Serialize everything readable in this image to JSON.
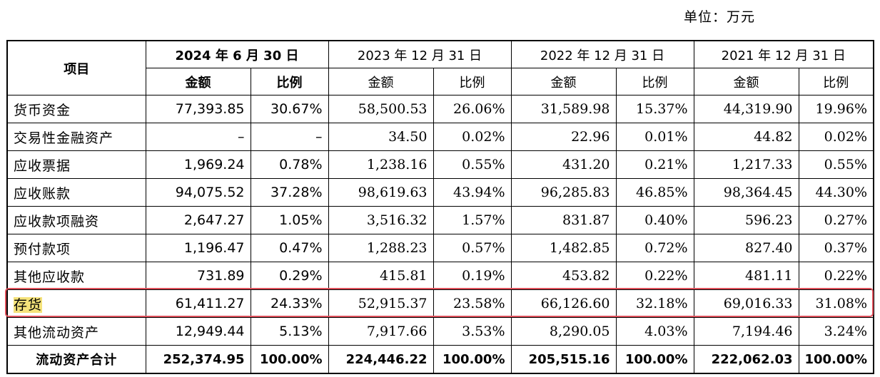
{
  "unit_label": "单位：万元",
  "header": {
    "item": "项目",
    "periods": [
      "2024 年 6 月 30 日",
      "2023 年 12 月 31 日",
      "2022 年 12 月 31 日",
      "2021 年 12 月 31 日"
    ],
    "amount": "金额",
    "ratio": "比例"
  },
  "rows": [
    {
      "label": "货币资金",
      "v": [
        "77,393.85",
        "30.67%",
        "58,500.53",
        "26.06%",
        "31,589.98",
        "15.37%",
        "44,319.90",
        "19.96%"
      ]
    },
    {
      "label": "交易性金融资产",
      "v": [
        "–",
        "–",
        "34.50",
        "0.02%",
        "22.96",
        "0.01%",
        "44.82",
        "0.02%"
      ]
    },
    {
      "label": "应收票据",
      "v": [
        "1,969.24",
        "0.78%",
        "1,238.16",
        "0.55%",
        "431.20",
        "0.21%",
        "1,217.33",
        "0.55%"
      ]
    },
    {
      "label": "应收账款",
      "v": [
        "94,075.52",
        "37.28%",
        "98,619.63",
        "43.94%",
        "96,285.83",
        "46.85%",
        "98,364.45",
        "44.30%"
      ]
    },
    {
      "label": "应收款项融资",
      "v": [
        "2,647.27",
        "1.05%",
        "3,516.32",
        "1.57%",
        "831.87",
        "0.40%",
        "596.23",
        "0.27%"
      ]
    },
    {
      "label": "预付款项",
      "v": [
        "1,196.47",
        "0.47%",
        "1,288.23",
        "0.57%",
        "1,482.85",
        "0.72%",
        "827.40",
        "0.37%"
      ]
    },
    {
      "label": "其他应收款",
      "v": [
        "731.89",
        "0.29%",
        "415.81",
        "0.19%",
        "453.82",
        "0.22%",
        "481.11",
        "0.22%"
      ]
    },
    {
      "label": "存货",
      "v": [
        "61,411.27",
        "24.33%",
        "52,915.37",
        "23.58%",
        "66,126.60",
        "32.18%",
        "69,016.33",
        "31.08%"
      ]
    },
    {
      "label": "其他流动资产",
      "v": [
        "12,949.44",
        "5.13%",
        "7,917.66",
        "3.53%",
        "8,290.05",
        "4.03%",
        "7,194.46",
        "3.24%"
      ]
    }
  ],
  "total": {
    "label": "流动资产合计",
    "v": [
      "252,374.95",
      "100.00%",
      "224,446.22",
      "100.00%",
      "205,515.16",
      "100.00%",
      "222,062.03",
      "100.00%"
    ]
  },
  "highlight": {
    "row_label": "存货",
    "box_color": "#e0505b",
    "text_highlight_color": "#f4e27a"
  }
}
